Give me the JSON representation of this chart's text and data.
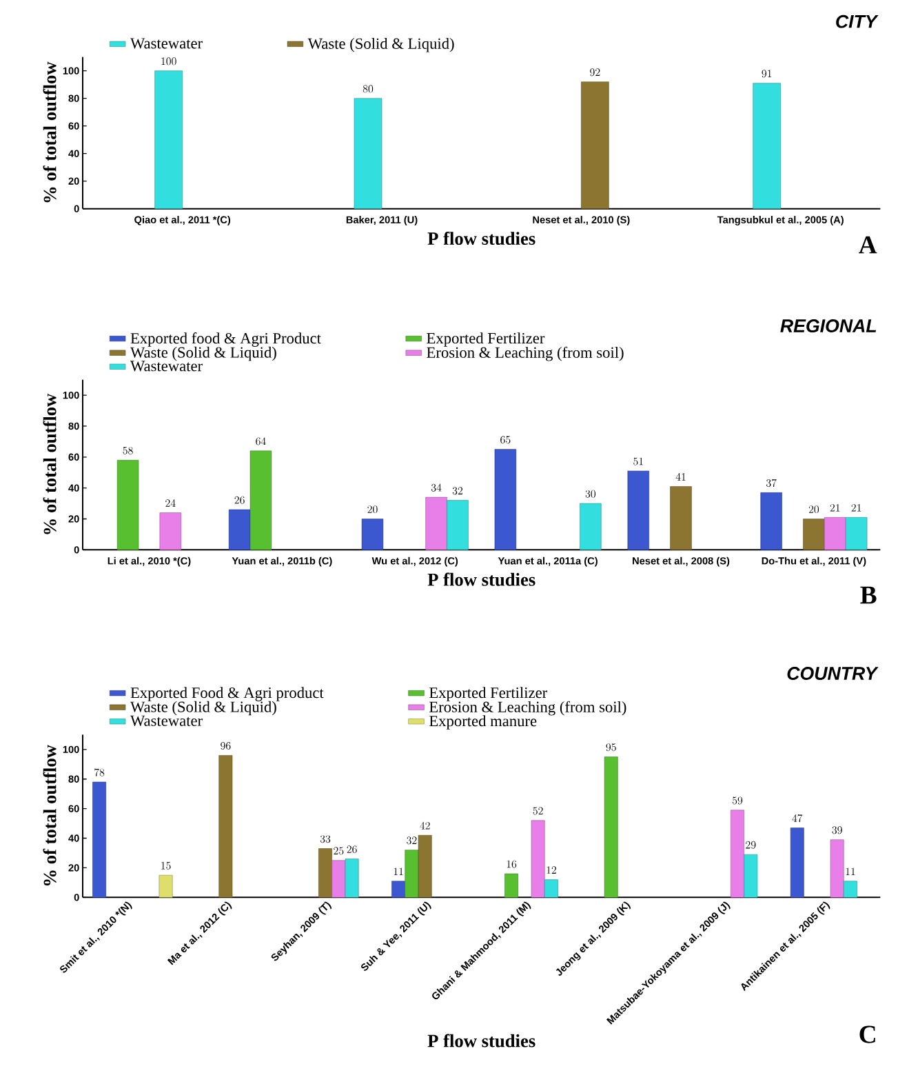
{
  "chart_data": [
    {
      "type": "bar",
      "title": "CITY",
      "xlabel": "P  flow studies",
      "ylabel": "% of total outflow",
      "annotations": [
        "A"
      ],
      "categories": [
        "Qiao et al., 2011 *(C)",
        "Baker, 2011 (U)",
        "Neset et al., 2010 (S)",
        "Tangsubkul et al., 2005 (A)"
      ],
      "series": [
        {
          "name": "Wastewater",
          "color": "#33dede",
          "values": [
            100,
            80,
            null,
            91
          ]
        },
        {
          "name": "Waste (Solid & Liquid)",
          "color": "#8c7530",
          "values": [
            null,
            null,
            92,
            null
          ]
        }
      ],
      "ylim": [
        0,
        110
      ],
      "yticks": [
        0,
        20,
        40,
        60,
        80,
        100
      ],
      "data_labels": true,
      "legend": "top",
      "grid": false
    },
    {
      "type": "bar",
      "title": "REGIONAL",
      "xlabel": "P flow studies",
      "ylabel": "% of total outflow",
      "annotations": [
        "B"
      ],
      "categories": [
        "Li et al., 2010 *(C)",
        "Yuan et al., 2011b (C)",
        "Wu et al., 2012 (C)",
        "Yuan et al., 2011a (C)",
        "Neset et al., 2008 (S)",
        "Do-Thu et al., 2011 (V)"
      ],
      "series": [
        {
          "name": "Exported food & Agri Product",
          "color": "#3c58d0",
          "values": [
            null,
            26,
            20,
            65,
            51,
            37
          ]
        },
        {
          "name": "Exported Fertilizer",
          "color": "#58c030",
          "values": [
            58,
            64,
            null,
            null,
            null,
            null
          ]
        },
        {
          "name": "Waste (Solid & Liquid)",
          "color": "#8c7530",
          "values": [
            null,
            null,
            null,
            null,
            41,
            20
          ]
        },
        {
          "name": "Erosion & Leaching (from soil)",
          "color": "#e87ee8",
          "values": [
            24,
            null,
            34,
            null,
            null,
            21
          ]
        },
        {
          "name": "Wastewater",
          "color": "#33dede",
          "values": [
            null,
            null,
            32,
            30,
            null,
            21
          ]
        }
      ],
      "ylim": [
        0,
        110
      ],
      "yticks": [
        0,
        20,
        40,
        60,
        80,
        100
      ],
      "data_labels": true,
      "legend": "top",
      "grid": false
    },
    {
      "type": "bar",
      "title": "COUNTRY",
      "xlabel": "P flow studies",
      "ylabel": "% of total outflow",
      "annotations": [
        "C"
      ],
      "categories": [
        "Smit et al., 2010 *(N)",
        "Ma et al., 2012 (C)",
        "Seyhan, 2009 (T)",
        "Suh & Yee, 2011 (U)",
        "Ghani & Mahmood, 2011 (M)",
        "Jeong et al., 2009 (K)",
        "Matsubae-Yokoyama et al., 2009 (J)",
        "Antikainen et al., 2005 (F)"
      ],
      "series": [
        {
          "name": "Exported Food & Agri product",
          "color": "#3c58d0",
          "values": [
            78,
            null,
            null,
            11,
            null,
            null,
            null,
            47
          ]
        },
        {
          "name": "Exported Fertilizer",
          "color": "#58c030",
          "values": [
            null,
            null,
            null,
            32,
            16,
            95,
            null,
            null
          ]
        },
        {
          "name": "Waste (Solid & Liquid)",
          "color": "#8c7530",
          "values": [
            null,
            96,
            33,
            42,
            null,
            null,
            null,
            null
          ]
        },
        {
          "name": "Erosion & Leaching (from soil)",
          "color": "#e87ee8",
          "values": [
            null,
            null,
            25,
            null,
            52,
            null,
            59,
            39
          ]
        },
        {
          "name": "Wastewater",
          "color": "#33dede",
          "values": [
            null,
            null,
            26,
            null,
            12,
            null,
            29,
            11
          ]
        },
        {
          "name": "Exported manure",
          "color": "#dede6a",
          "values": [
            15,
            null,
            null,
            null,
            null,
            null,
            null,
            null
          ]
        }
      ],
      "ylim": [
        0,
        110
      ],
      "yticks": [
        0,
        20,
        40,
        60,
        80,
        100
      ],
      "data_labels": true,
      "legend": "top",
      "grid": false
    }
  ]
}
